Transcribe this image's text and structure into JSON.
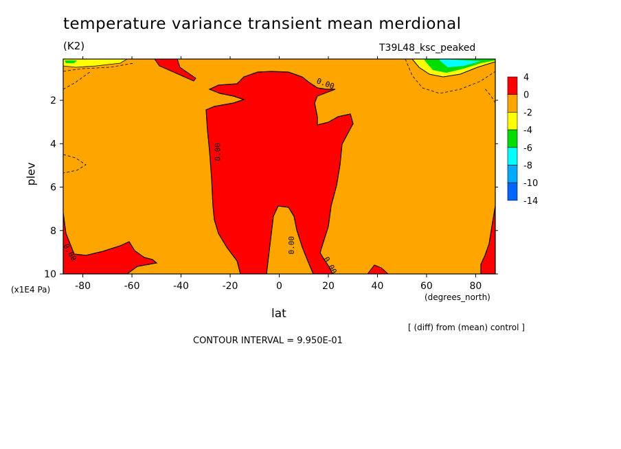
{
  "chart_data": {
    "type": "heatmap",
    "title": "temperature variance transient mean merdional",
    "subtitle": "(K2)",
    "run_label": "T39L48_ksc_peaked",
    "xlabel": "lat",
    "x_unit": "(degrees_north)",
    "ylabel": "plev",
    "y_unit": "(x1E4 Pa)",
    "xlim": [
      -88,
      88
    ],
    "ylim": [
      10,
      0.1
    ],
    "x_ticks": [
      "-80",
      "-60",
      "-40",
      "-20",
      "0",
      "20",
      "40",
      "60",
      "80"
    ],
    "y_ticks": [
      "2",
      "4",
      "6",
      "8",
      "10"
    ],
    "colorbar": {
      "levels": [
        "4",
        "0",
        "-2",
        "-4",
        "-6",
        "-8",
        "-10",
        "-14"
      ],
      "colors": [
        "#ff0000",
        "#ffa500",
        "#ffff00",
        "#00dd00",
        "#00ffff",
        "#00aaff",
        "#0066ff"
      ]
    },
    "contour_labels": [
      "0.00",
      "0.00",
      "0.00",
      "0.00",
      "0.00"
    ],
    "note": "[ (diff) from (mean) control ]",
    "contour_interval": "CONTOUR INTERVAL = 9.950E-01",
    "regions": [
      {
        "name": "central-positive",
        "value_range": "0 to 4",
        "lat_range": [
          -30,
          30
        ],
        "plev_range": [
          0.7,
          10
        ]
      },
      {
        "name": "sh-surface-positive",
        "value_range": "0 to 4",
        "lat_range": [
          -88,
          -52
        ],
        "plev_range": [
          8.4,
          10
        ]
      },
      {
        "name": "nh-surface-positive",
        "value_range": "0 to 4",
        "lat_range": [
          84,
          88
        ],
        "plev_range": [
          8.8,
          10
        ]
      },
      {
        "name": "upper-nh-negative",
        "value_range": "-14 to -2",
        "lat_range": [
          60,
          88
        ],
        "plev_range": [
          0.1,
          0.8
        ]
      }
    ]
  }
}
